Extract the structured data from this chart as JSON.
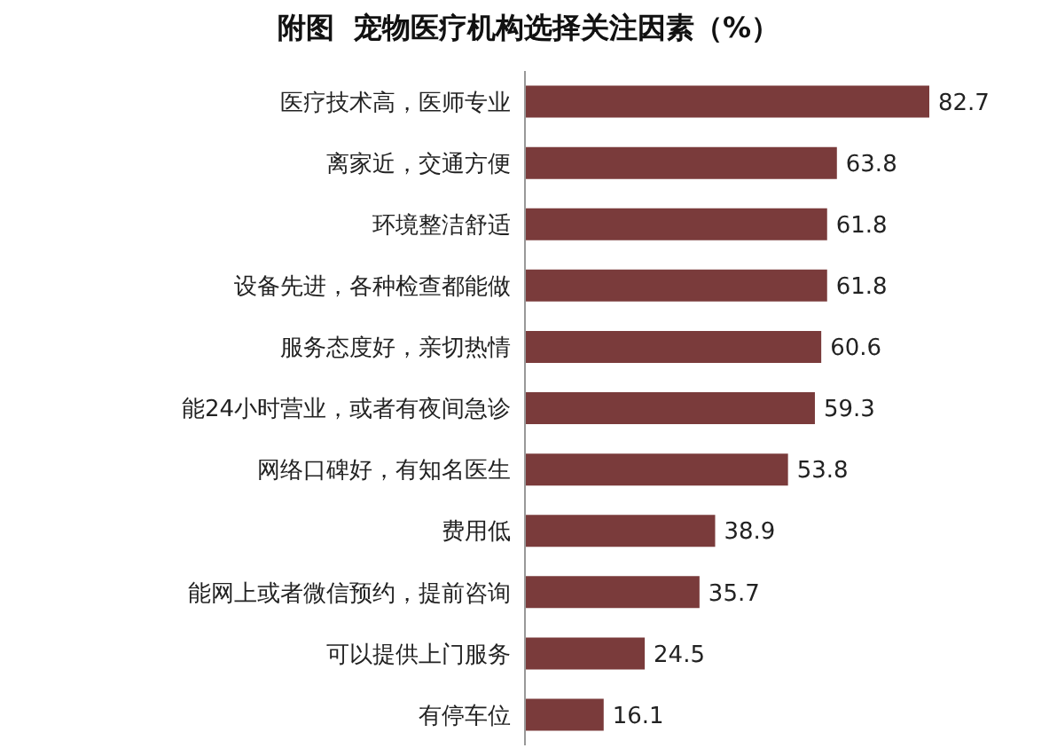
{
  "chart_data": {
    "type": "bar",
    "orientation": "horizontal",
    "title": "附图  宠物医疗机构选择关注因素（%）",
    "categories": [
      "医疗技术高，医师专业",
      "离家近，交通方便",
      "环境整洁舒适",
      "设备先进，各种检查都能做",
      "服务态度好，亲切热情",
      "能24小时营业，或者有夜间急诊",
      "网络口碑好，有知名医生",
      "费用低",
      "能网上或者微信预约，提前咨询",
      "可以提供上门服务",
      "有停车位"
    ],
    "values": [
      82.7,
      63.8,
      61.8,
      61.8,
      60.6,
      59.3,
      53.8,
      38.9,
      35.7,
      24.5,
      16.1
    ],
    "color": "#7a3b3b",
    "data_labels": true
  }
}
